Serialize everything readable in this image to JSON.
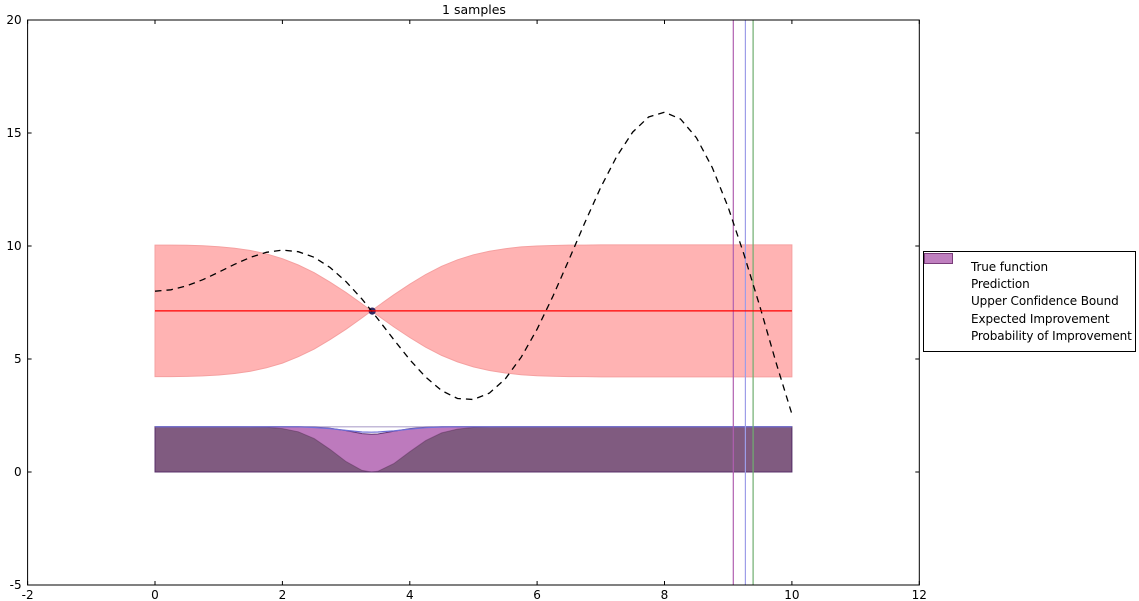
{
  "title": "1 samples",
  "chart_data": {
    "type": "line",
    "title": "1 samples",
    "xlabel": "",
    "ylabel": "",
    "xlim": [
      -2,
      12
    ],
    "ylim": [
      -5,
      20
    ],
    "grid": false,
    "xticks": [
      "-2",
      "0",
      "2",
      "4",
      "6",
      "8",
      "10",
      "12"
    ],
    "xtick_values": [
      -2,
      0,
      2,
      4,
      6,
      8,
      10,
      12
    ],
    "yticks": [
      "-5",
      "0",
      "5",
      "10",
      "15",
      "20"
    ],
    "ytick_values": [
      -5,
      0,
      5,
      10,
      15,
      20
    ],
    "x": [
      0,
      0.25,
      0.5,
      0.75,
      1,
      1.25,
      1.5,
      1.75,
      2,
      2.25,
      2.5,
      2.75,
      3,
      3.25,
      3.4,
      3.5,
      3.75,
      4,
      4.25,
      4.5,
      4.75,
      5,
      5.25,
      5.5,
      5.75,
      6,
      6.25,
      6.5,
      6.75,
      7,
      7.25,
      7.5,
      7.75,
      8,
      8.25,
      8.5,
      8.75,
      9,
      9.25,
      9.5,
      9.75,
      10
    ],
    "true_function": [
      8.0,
      8.06,
      8.24,
      8.51,
      8.84,
      9.19,
      9.5,
      9.72,
      9.82,
      9.75,
      9.5,
      9.05,
      8.42,
      7.65,
      7.13,
      6.77,
      5.86,
      4.97,
      4.2,
      3.6,
      3.25,
      3.21,
      3.49,
      4.12,
      5.08,
      6.32,
      7.79,
      9.4,
      11.04,
      12.6,
      13.97,
      15.04,
      15.71,
      15.92,
      15.62,
      14.79,
      13.47,
      11.71,
      9.61,
      7.29,
      4.85,
      2.56
    ],
    "true_function_color": "#000000",
    "prediction_value": 7.13,
    "prediction_color": "#ff0000",
    "confidence_band": {
      "top": [
        10.04,
        10.04,
        10.03,
        10.01,
        9.97,
        9.9,
        9.8,
        9.65,
        9.44,
        9.16,
        8.82,
        8.4,
        7.94,
        7.44,
        7.13,
        7.34,
        7.84,
        8.31,
        8.74,
        9.1,
        9.39,
        9.61,
        9.77,
        9.88,
        9.96,
        10.0,
        10.02,
        10.04,
        10.04,
        10.05,
        10.05,
        10.05,
        10.05,
        10.05,
        10.05,
        10.05,
        10.05,
        10.05,
        10.05,
        10.05,
        10.05,
        10.05
      ],
      "bottom": [
        4.22,
        4.22,
        4.23,
        4.25,
        4.29,
        4.36,
        4.46,
        4.61,
        4.82,
        5.1,
        5.44,
        5.86,
        6.32,
        6.82,
        7.13,
        6.92,
        6.42,
        5.95,
        5.52,
        5.16,
        4.87,
        4.65,
        4.49,
        4.38,
        4.3,
        4.26,
        4.24,
        4.22,
        4.22,
        4.21,
        4.21,
        4.21,
        4.21,
        4.21,
        4.21,
        4.21,
        4.21,
        4.21,
        4.21,
        4.21,
        4.21,
        4.21
      ],
      "fill": "#ffb3b3",
      "edge": "#f5a0a0"
    },
    "sample_point": {
      "x": 3.41,
      "y": 7.12,
      "color": "#2e2963"
    },
    "acquisition": {
      "baseline": 0,
      "max": 2,
      "expected_improvement": [
        2,
        2,
        2,
        2,
        2,
        2,
        1.99,
        1.98,
        1.92,
        1.78,
        1.48,
        1.0,
        0.46,
        0.07,
        0,
        0.03,
        0.37,
        0.9,
        1.39,
        1.73,
        1.9,
        1.97,
        1.99,
        2,
        2,
        2,
        2,
        2,
        2,
        2,
        2,
        2,
        2,
        2,
        2,
        2,
        2,
        2,
        2,
        2,
        2,
        2
      ],
      "ei_fill": "#7fbf7f",
      "ei_edge": "rgba(40,90,40,0.45)",
      "probability_of_improvement": [
        2,
        2,
        2,
        2,
        2,
        2,
        2,
        2,
        2,
        2,
        1.99,
        1.94,
        1.83,
        1.7,
        1.67,
        1.68,
        1.8,
        1.92,
        1.98,
        2,
        2,
        2,
        2,
        2,
        2,
        2,
        2,
        2,
        2,
        2,
        2,
        2,
        2,
        2,
        2,
        2,
        2,
        2,
        2,
        2,
        2,
        2
      ],
      "pi_fill": "rgba(128,0,128,0.52)",
      "pi_edge": "rgba(84,40,104,0.9)",
      "ucb_line": [
        2,
        2,
        2,
        2,
        2,
        2,
        2,
        2,
        2,
        2,
        1.97,
        1.92,
        1.84,
        1.77,
        1.76,
        1.77,
        1.82,
        1.9,
        1.96,
        1.99,
        2,
        2,
        2,
        2,
        2,
        2,
        2,
        2,
        2,
        2,
        2,
        2,
        2,
        2,
        2,
        2,
        2,
        2,
        2,
        2,
        2,
        2
      ],
      "ucb_color": "#6f6fd8",
      "top_edge_color": "rgba(110,90,160,0.55)"
    },
    "vlines": [
      {
        "x": 9.08,
        "color": "#b05fb0",
        "name": "probability-of-improvement-argmax"
      },
      {
        "x": 9.27,
        "color": "#9d9de8",
        "name": "upper-confidence-bound-argmax"
      },
      {
        "x": 9.39,
        "color": "#6fae6f",
        "name": "expected-improvement-argmax"
      }
    ],
    "legend_position": "right-outside"
  },
  "legend": {
    "items": [
      {
        "label": "True function",
        "swatch": "dashed-line",
        "color": "#000000"
      },
      {
        "label": "Prediction",
        "swatch": "line",
        "color": "#ff0000"
      },
      {
        "label": "Upper Confidence Bound",
        "swatch": "line",
        "color": "#9999e8"
      },
      {
        "label": "Expected Improvement",
        "swatch": "patch",
        "color": "#7fbf7f",
        "edge": "#3c783c"
      },
      {
        "label": "Probability of Improvement",
        "swatch": "patch",
        "color": "#bf7fbf",
        "edge": "#7a3d7a"
      }
    ]
  },
  "axes": {
    "frame_color": "#000000",
    "tick_color": "#000000"
  }
}
